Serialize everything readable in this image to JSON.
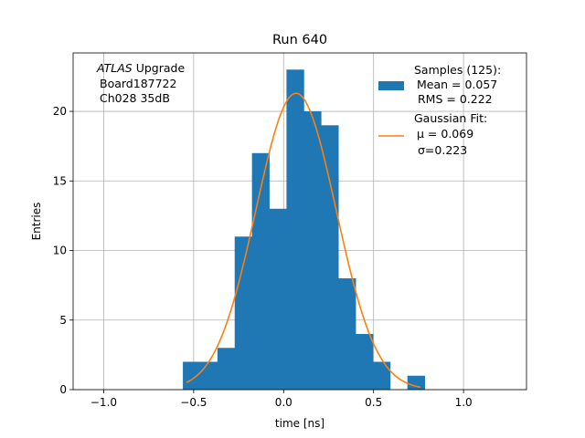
{
  "chart_data": {
    "type": "bar",
    "title": "Run 640",
    "xlabel": "time [ns]",
    "ylabel": "Entries",
    "xlim": [
      -1.17,
      1.35
    ],
    "ylim": [
      0,
      24.2
    ],
    "grid": true,
    "xticks": [
      -1.0,
      -0.5,
      0.0,
      0.5,
      1.0
    ],
    "xtick_labels": [
      "−1.0",
      "−0.5",
      "0.0",
      "0.5",
      "1.0"
    ],
    "yticks": [
      0,
      5,
      10,
      15,
      20
    ],
    "ytick_labels": [
      "0",
      "5",
      "10",
      "15",
      "20"
    ],
    "info_lines": [
      "ATLAS Upgrade",
      "Board187722",
      "Ch028 35dB"
    ],
    "bin_edges": [
      -0.56,
      -0.464,
      -0.368,
      -0.272,
      -0.176,
      -0.08,
      0.016,
      0.112,
      0.208,
      0.304,
      0.4,
      0.496,
      0.592,
      0.688,
      0.784
    ],
    "counts": [
      2,
      2,
      3,
      11,
      17,
      13,
      23,
      20,
      19,
      8,
      4,
      2,
      0,
      1
    ],
    "fit": {
      "mu": 0.069,
      "sigma": 0.223,
      "amplitude": 21.3,
      "x_range": [
        -0.54,
        0.76
      ]
    },
    "legend": {
      "location": "upper right",
      "entries": [
        {
          "type": "bar",
          "lines": [
            "Samples (125):",
            "Mean = 0.057",
            "RMS = 0.222"
          ]
        },
        {
          "type": "line",
          "lines": [
            "Gaussian Fit:",
            "μ = 0.069",
            "σ=0.223"
          ]
        }
      ]
    },
    "colors": {
      "bar": "#1f77b4",
      "fit": "#ff7f0e",
      "grid": "#b0b0b0"
    }
  }
}
